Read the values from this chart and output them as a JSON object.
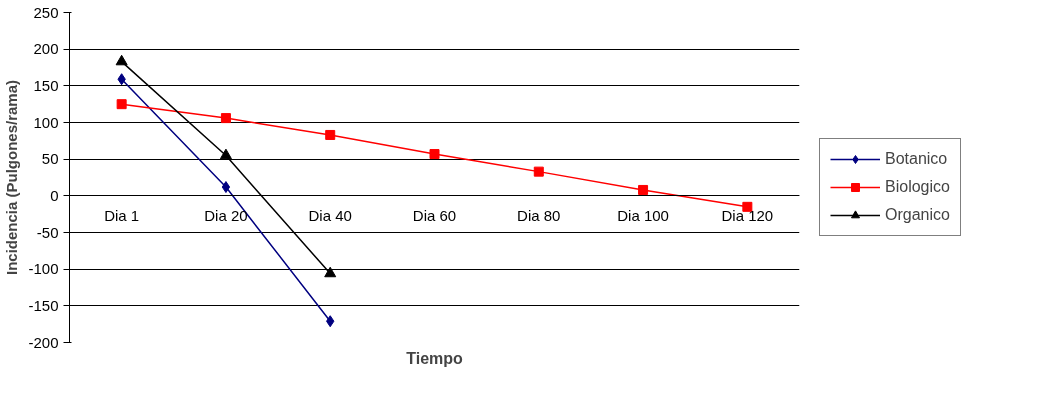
{
  "chart_data": {
    "type": "line",
    "xlabel": "Tiempo",
    "ylabel": "Incidencia (Pulgones/rama)",
    "categories": [
      "Dia 1",
      "Dia 20",
      "Dia 40",
      "Dia 60",
      "Dia 80",
      "Dia 100",
      "Dia 120"
    ],
    "series": [
      {
        "name": "Botanico",
        "color": "#000080",
        "marker": "diamond",
        "values": [
          159,
          12,
          -171,
          null,
          null,
          null,
          null
        ]
      },
      {
        "name": "Biologico",
        "color": "#ff0000",
        "marker": "square",
        "values": [
          125,
          106,
          83,
          57,
          33,
          8,
          -15
        ]
      },
      {
        "name": "Organico",
        "color": "#000000",
        "marker": "triangle",
        "values": [
          183,
          55,
          -106,
          null,
          null,
          null,
          null
        ]
      }
    ],
    "ylim": [
      -200,
      250
    ],
    "yticks": [
      -200,
      -150,
      -100,
      -50,
      0,
      50,
      100,
      150,
      200,
      250
    ],
    "grid": "y",
    "legend": "right",
    "line_style": "solid"
  }
}
